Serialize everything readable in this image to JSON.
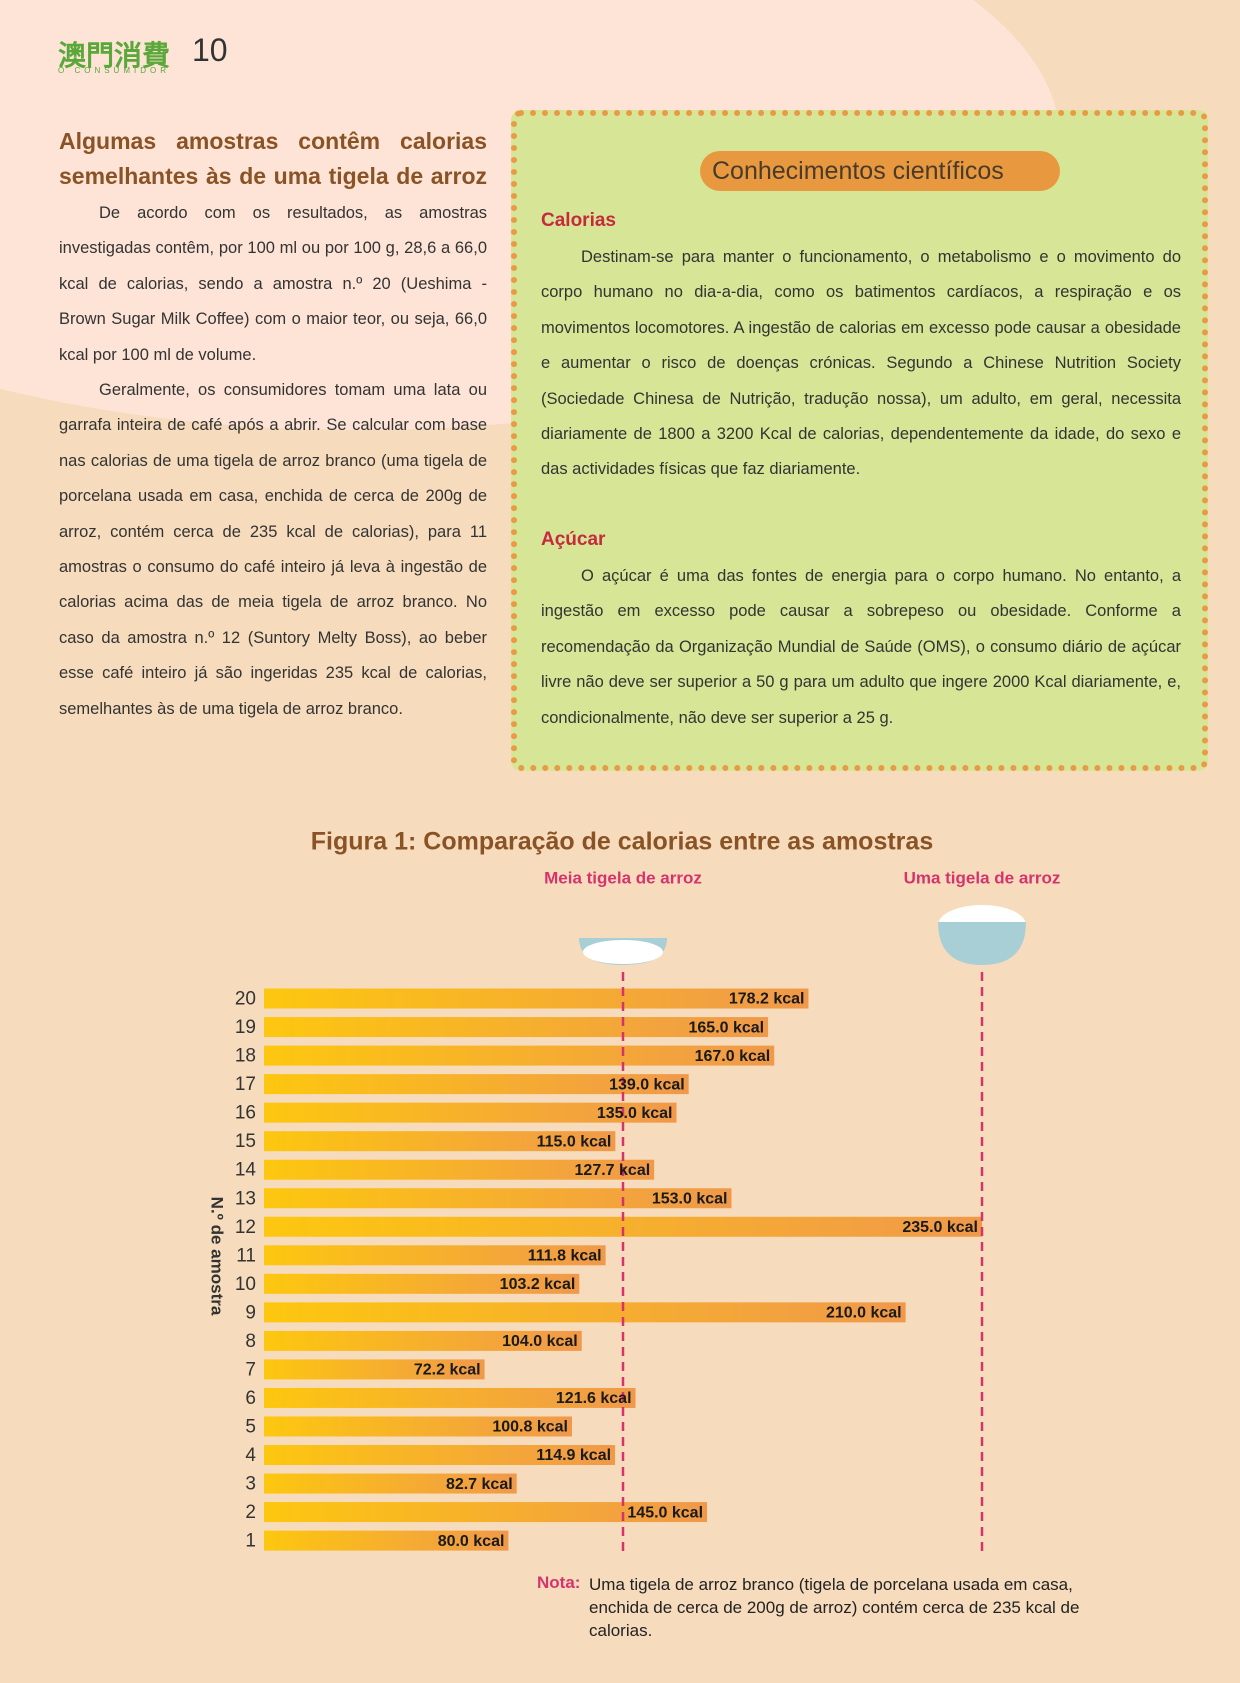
{
  "header": {
    "logo": "澳門消費",
    "logo_sub": "O CONSUMIDOR",
    "page_number": "10"
  },
  "article": {
    "heading": "Algumas amostras contêm calorias semelhantes às de uma tigela de arroz",
    "paragraphs": [
      "De acordo com os resultados, as amostras investigadas contêm, por 100 ml ou por 100 g, 28,6 a 66,0 kcal de calorias, sendo a amostra n.º 20 (Ueshima - Brown Sugar Milk Coffee) com o maior teor, ou seja, 66,0 kcal por 100 ml de volume.",
      "Geralmente, os consumidores tomam uma lata ou garrafa inteira de café após a abrir. Se calcular com base nas calorias de uma tigela de arroz branco (uma tigela de porcelana usada em casa, enchida de cerca de 200g de arroz, contém cerca de 235 kcal de calorias), para 11 amostras o consumo do café inteiro já leva à ingestão de calorias acima das de meia tigela de arroz branco. No caso da amostra n.º 12 (Suntory Melty Boss), ao beber esse café inteiro já são ingeridas 235 kcal de calorias, semelhantes às de uma tigela de arroz branco."
    ]
  },
  "box": {
    "title": "Conhecimentos científicos",
    "sections": [
      {
        "heading": "Calorias",
        "text": "Destinam-se para manter o funcionamento, o metabolismo e o movimento do corpo humano no dia-a-dia, como os batimentos cardíacos, a respiração e os movimentos locomotores. A ingestão de calorias em excesso pode causar a obesidade e aumentar o risco de doenças crónicas. Segundo a Chinese Nutrition Society (Sociedade Chinesa de Nutrição, tradução nossa), um adulto, em geral, necessita diariamente de 1800 a 3200 Kcal de calorias, dependentemente da idade, do sexo e das actividades físicas que faz diariamente."
      },
      {
        "heading": "Açúcar",
        "text": "O açúcar é uma das fontes de energia para o corpo humano. No entanto, a ingestão em excesso pode causar a sobrepeso ou obesidade. Conforme a recomendação da Organização Mundial de Saúde (OMS), o consumo diário de açúcar livre não deve ser superior a 50 g para um adulto que ingere 2000 Kcal diariamente, e, condicionalmente, não deve ser superior a 25 g."
      }
    ]
  },
  "chart_data": {
    "type": "bar",
    "orientation": "horizontal",
    "title": "Figura 1: Comparação de calorias entre as amostras",
    "y_label": "N.º de amostra",
    "categories": [
      "1",
      "2",
      "3",
      "4",
      "5",
      "6",
      "7",
      "8",
      "9",
      "10",
      "11",
      "12",
      "13",
      "14",
      "15",
      "16",
      "17",
      "18",
      "19",
      "20"
    ],
    "values": [
      80.0,
      145.0,
      82.7,
      114.9,
      100.8,
      121.6,
      72.2,
      104.0,
      210.0,
      103.2,
      111.8,
      235.0,
      153.0,
      127.7,
      115.0,
      135.0,
      139.0,
      167.0,
      165.0,
      178.2
    ],
    "value_labels": [
      "80.0 kcal",
      "145.0 kcal",
      "82.7 kcal",
      "114.9 kcal",
      "100.8 kcal",
      "121.6 kcal",
      "72.2 kcal",
      "104.0 kcal",
      "210.0 kcal",
      "103.2 kcal",
      "111.8 kcal",
      "235.0 kcal",
      "153.0 kcal",
      "127.7 kcal",
      "115.0 kcal",
      "135.0 kcal",
      "139.0 kcal",
      "167.0 kcal",
      "165.0 kcal",
      "178.2 kcal"
    ],
    "colors": [
      "#fdc70f",
      "#f0994a"
    ],
    "xlim": [
      0,
      235
    ],
    "reference_lines": [
      {
        "label": "Meia tigela de arroz",
        "value": 117.5
      },
      {
        "label": "Uma tigela de arroz",
        "value": 235
      }
    ],
    "reference_color": "#d6336c",
    "note": {
      "label": "Nota:",
      "text": "Uma tigela de arroz branco (tigela de porcelana usada em casa, enchida de cerca de 200g de arroz) contém cerca de 235 kcal de calorias."
    }
  }
}
